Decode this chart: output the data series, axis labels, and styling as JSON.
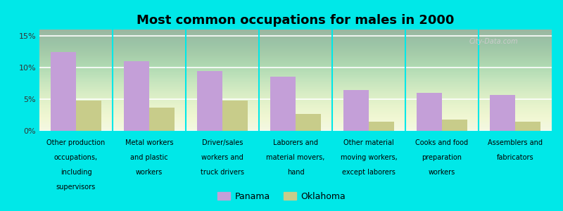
{
  "title": "Most common occupations for males in 2000",
  "categories": [
    "Other production\noccupations,\nincluding\nsupervisors",
    "Metal workers\nand plastic\nworkers",
    "Driver/sales\nworkers and\ntruck drivers",
    "Laborers and\nmaterial movers,\nhand",
    "Other material\nmoving workers,\nexcept laborers",
    "Cooks and food\npreparation\nworkers",
    "Assemblers and\nfabricators"
  ],
  "panama_values": [
    12.5,
    11.0,
    9.5,
    8.6,
    6.5,
    6.0,
    5.7
  ],
  "oklahoma_values": [
    4.8,
    3.7,
    4.8,
    2.7,
    1.4,
    1.8,
    1.4
  ],
  "panama_color": "#c49fd8",
  "oklahoma_color": "#c8cc8a",
  "background_color": "#00e8e8",
  "plot_bg_color": "#eef5e2",
  "ylim": [
    0,
    16
  ],
  "yticks": [
    0,
    5,
    10,
    15
  ],
  "ytick_labels": [
    "0%",
    "5%",
    "10%",
    "15%"
  ],
  "legend_panama": "Panama",
  "legend_oklahoma": "Oklahoma",
  "bar_width": 0.35,
  "title_fontsize": 13,
  "tick_fontsize": 7,
  "legend_fontsize": 9
}
